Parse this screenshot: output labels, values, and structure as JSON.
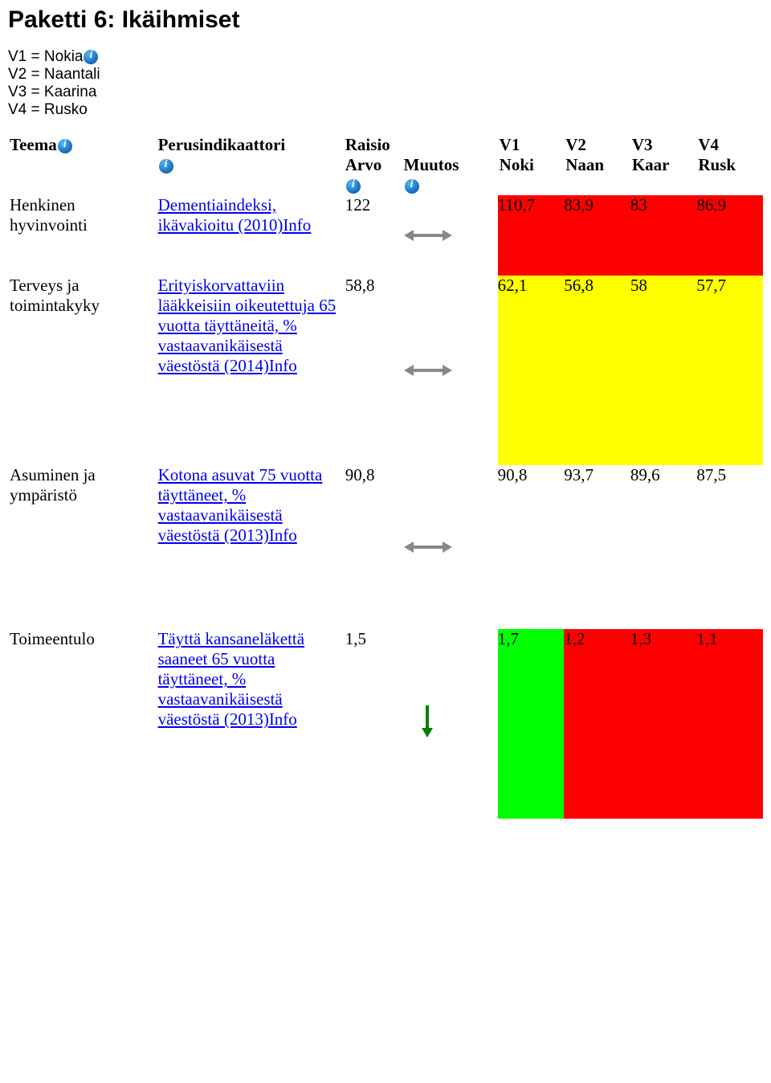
{
  "title": "Paketti 6: Ikäihmiset",
  "legend": [
    {
      "prefix": "V1 = ",
      "name": "Nokia",
      "info_icon": true
    },
    {
      "prefix": "V2 = ",
      "name": "Naantali",
      "info_icon": false
    },
    {
      "prefix": "V3 = ",
      "name": "Kaarina",
      "info_icon": false
    },
    {
      "prefix": "V4 = ",
      "name": "Rusko",
      "info_icon": false
    }
  ],
  "headers": {
    "teema": "Teema",
    "perusindikaattori": "Perusindikaattori",
    "raisio": "Raisio",
    "arvo": "Arvo",
    "muutos": "Muutos",
    "v1": "V1",
    "v1b": "Noki",
    "v2": "V2",
    "v2b": "Naan",
    "v3": "V3",
    "v3b": "Kaar",
    "v4": "V4",
    "v4b": "Rusk"
  },
  "colors": {
    "red": "#ff0000",
    "yellow": "#ffff00",
    "green": "#00ff00",
    "white": "#ffffff"
  },
  "rows": [
    {
      "teema": "Henkinen hyvinvointi",
      "indicator_text": "Dementiaindeksi, ikävakioitu (2010)",
      "info_suffix": "Info",
      "arvo": "122",
      "trend": "flat",
      "v1": {
        "val": "110,7",
        "bg": "#ff0000"
      },
      "v2": {
        "val": "83,9",
        "bg": "#ff0000"
      },
      "v3": {
        "val": "83",
        "bg": "#ff0000"
      },
      "v4": {
        "val": "86,9",
        "bg": "#ff0000"
      },
      "h": "row-h-122"
    },
    {
      "teema": "Terveys ja toimintakyky",
      "indicator_text": "Erityiskorvattaviin lääkkeisiin oikeutettuja 65 vuotta täyttäneitä, % vastaavanikäisestä väestöstä (2014)",
      "info_suffix": "Info",
      "arvo": "58,8",
      "trend": "flat",
      "v1": {
        "val": "62,1",
        "bg": "#ffff00"
      },
      "v2": {
        "val": "56,8",
        "bg": "#ffff00"
      },
      "v3": {
        "val": "58",
        "bg": "#ffff00"
      },
      "v4": {
        "val": "57,7",
        "bg": "#ffff00"
      },
      "h": "row-h-58"
    },
    {
      "teema": "Asuminen ja ympäristö",
      "indicator_text": "Kotona asuvat 75 vuotta täyttäneet, % vastaavanikäisestä väestöstä (2013)",
      "info_suffix": "Info",
      "arvo": "90,8",
      "trend": "flat",
      "v1": {
        "val": "90,8",
        "bg": "#ffffff"
      },
      "v2": {
        "val": "93,7",
        "bg": "#ffffff"
      },
      "v3": {
        "val": "89,6",
        "bg": "#ffffff"
      },
      "v4": {
        "val": "87,5",
        "bg": "#ffffff"
      },
      "h": "row-h-90"
    },
    {
      "teema": "Toimeentulo",
      "indicator_text": "Täyttä kansaneläkettä saaneet 65 vuotta täyttäneet, % vastaavanikäisestä väestöstä (2013)",
      "info_suffix": "Info",
      "arvo": "1,5",
      "trend": "down",
      "v1": {
        "val": "1,7",
        "bg": "#00ff00"
      },
      "v2": {
        "val": "1,2",
        "bg": "#ff0000"
      },
      "v3": {
        "val": "1,3",
        "bg": "#ff0000"
      },
      "v4": {
        "val": "1,1",
        "bg": "#ff0000"
      },
      "h": "row-h-15"
    }
  ]
}
